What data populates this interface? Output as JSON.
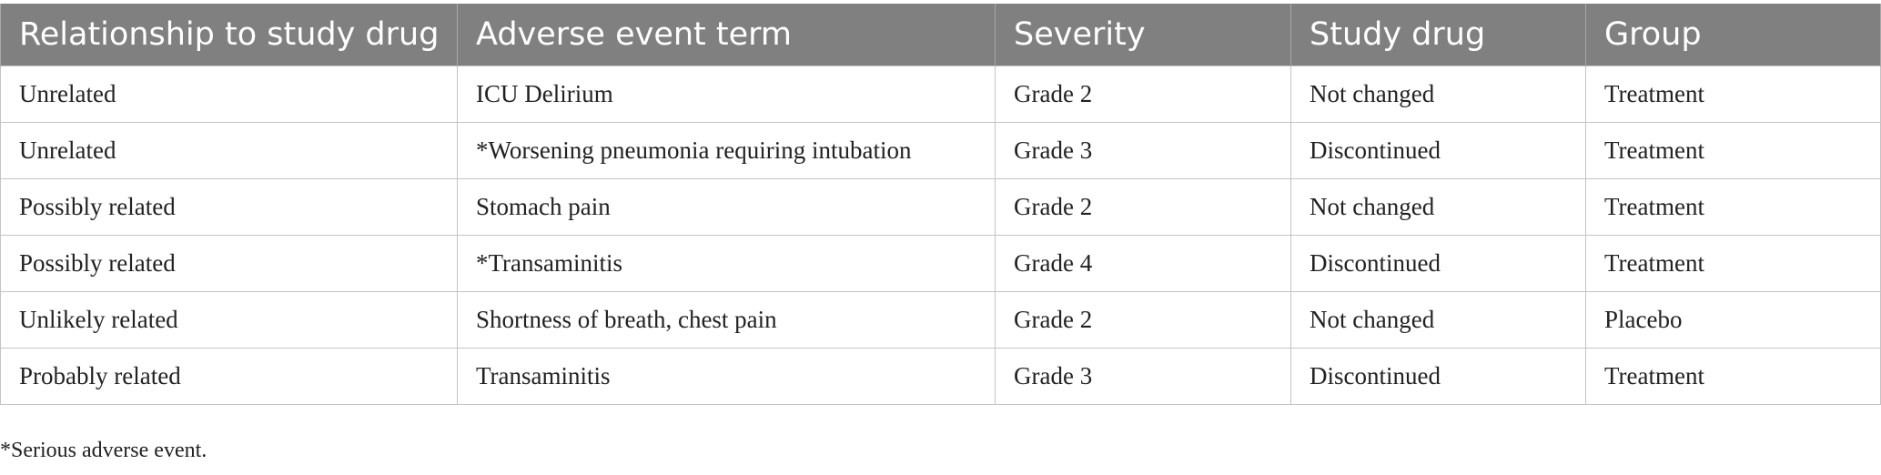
{
  "table": {
    "header": [
      "Relationship to study drug",
      "Adverse event term",
      "Severity",
      "Study drug",
      "Group"
    ],
    "rows": [
      [
        "Unrelated",
        "ICU Delirium",
        "Grade 2",
        "Not changed",
        "Treatment"
      ],
      [
        "Unrelated",
        "*Worsening pneumonia requiring intubation",
        "Grade 3",
        "Discontinued",
        "Treatment"
      ],
      [
        "Possibly related",
        "Stomach pain",
        "Grade 2",
        "Not changed",
        "Treatment"
      ],
      [
        "Possibly related",
        "*Transaminitis",
        "Grade 4",
        "Discontinued",
        "Treatment"
      ],
      [
        "Unlikely related",
        "Shortness of breath, chest pain",
        "Grade 2",
        "Not changed",
        "Placebo"
      ],
      [
        "Probably related",
        "Transaminitis",
        "Grade 3",
        "Discontinued",
        "Treatment"
      ]
    ],
    "footnote": "*Serious adverse event."
  }
}
